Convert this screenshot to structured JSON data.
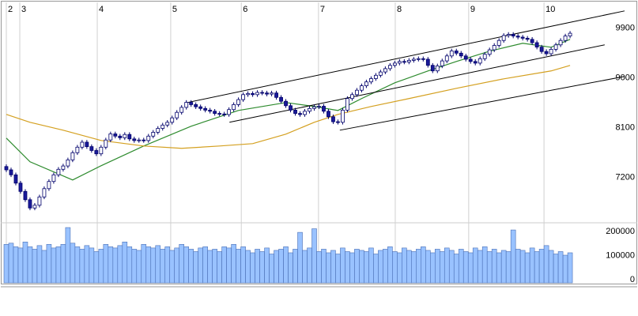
{
  "chart_data": {
    "type": "candlestick",
    "xlim": [
      -0.5,
      128
    ],
    "xticks": [
      {
        "value": 0,
        "label": "2"
      },
      {
        "value": 2.84,
        "label": "3"
      },
      {
        "value": 19.2,
        "label": "4"
      },
      {
        "value": 34.7,
        "label": "5"
      },
      {
        "value": 49.6,
        "label": "6"
      },
      {
        "value": 65.9,
        "label": "7"
      },
      {
        "value": 82.1,
        "label": "8"
      },
      {
        "value": 97.6,
        "label": "9"
      },
      {
        "value": 113.5,
        "label": "10"
      }
    ],
    "ylim": [
      6440,
      10340
    ],
    "yticks": [
      9900,
      9000,
      8100,
      7200
    ],
    "grid": true,
    "up_color": "#ffffff",
    "down_color": "#1a1a99",
    "open": [
      7400,
      7340,
      7250,
      7100,
      6950,
      6800,
      6650,
      6700,
      6850,
      7000,
      7130,
      7250,
      7350,
      7410,
      7520,
      7650,
      7750,
      7840,
      7760,
      7690,
      7630,
      7750,
      7880,
      7990,
      7950,
      7920,
      7980,
      7900,
      7870,
      7880,
      7870,
      7950,
      8020,
      8090,
      8150,
      8200,
      8280,
      8380,
      8470,
      8560,
      8520,
      8480,
      8450,
      8420,
      8400,
      8360,
      8350,
      8340,
      8430,
      8520,
      8610,
      8700,
      8720,
      8700,
      8740,
      8730,
      8710,
      8730,
      8650,
      8580,
      8500,
      8420,
      8360,
      8340,
      8400,
      8450,
      8480,
      8490,
      8400,
      8300,
      8210,
      8200,
      8420,
      8630,
      8700,
      8780,
      8860,
      8930,
      8990,
      9050,
      9110,
      9170,
      9230,
      9270,
      9300,
      9290,
      9320,
      9340,
      9350,
      9340,
      9230,
      9130,
      9220,
      9310,
      9400,
      9490,
      9450,
      9400,
      9340,
      9300,
      9270,
      9350,
      9430,
      9510,
      9590,
      9680,
      9770,
      9790,
      9760,
      9740,
      9720,
      9700,
      9640,
      9560,
      9480,
      9440,
      9520,
      9600,
      9680,
      9760
    ],
    "high": [
      7440,
      7380,
      7290,
      7140,
      6990,
      6840,
      6740,
      6890,
      7040,
      7170,
      7290,
      7390,
      7450,
      7560,
      7690,
      7790,
      7880,
      7880,
      7800,
      7730,
      7790,
      7920,
      8030,
      8030,
      7990,
      8020,
      8020,
      7940,
      7920,
      7920,
      7990,
      8060,
      8130,
      8190,
      8240,
      8320,
      8420,
      8510,
      8600,
      8600,
      8560,
      8520,
      8490,
      8460,
      8440,
      8400,
      8390,
      8470,
      8560,
      8650,
      8740,
      8760,
      8760,
      8780,
      8780,
      8770,
      8770,
      8770,
      8690,
      8620,
      8540,
      8460,
      8400,
      8440,
      8490,
      8520,
      8530,
      8530,
      8440,
      8340,
      8250,
      8460,
      8670,
      8740,
      8820,
      8900,
      8970,
      9030,
      9090,
      9150,
      9210,
      9270,
      9310,
      9340,
      9340,
      9360,
      9380,
      9390,
      9390,
      9380,
      9270,
      9260,
      9350,
      9440,
      9530,
      9530,
      9490,
      9440,
      9380,
      9340,
      9390,
      9470,
      9550,
      9630,
      9720,
      9810,
      9830,
      9830,
      9800,
      9780,
      9760,
      9740,
      9680,
      9600,
      9520,
      9560,
      9640,
      9720,
      9800,
      9850
    ],
    "low": [
      7300,
      7210,
      7060,
      6910,
      6760,
      6610,
      6610,
      6660,
      6810,
      6960,
      7090,
      7210,
      7310,
      7370,
      7480,
      7610,
      7710,
      7720,
      7650,
      7590,
      7590,
      7710,
      7840,
      7910,
      7880,
      7880,
      7860,
      7830,
      7830,
      7830,
      7830,
      7910,
      7980,
      8050,
      8110,
      8160,
      8240,
      8340,
      8430,
      8480,
      8440,
      8410,
      8380,
      8360,
      8320,
      8310,
      8300,
      8300,
      8390,
      8480,
      8570,
      8660,
      8660,
      8660,
      8690,
      8670,
      8670,
      8610,
      8540,
      8460,
      8380,
      8320,
      8300,
      8300,
      8360,
      8410,
      8440,
      8360,
      8260,
      8170,
      8160,
      8160,
      8380,
      8590,
      8660,
      8740,
      8820,
      8890,
      8950,
      9010,
      9070,
      9130,
      9190,
      9230,
      9250,
      9250,
      9280,
      9300,
      9300,
      9190,
      9090,
      9090,
      9180,
      9270,
      9360,
      9410,
      9360,
      9300,
      9260,
      9230,
      9230,
      9310,
      9390,
      9470,
      9550,
      9640,
      9730,
      9720,
      9700,
      9680,
      9660,
      9600,
      9520,
      9440,
      9400,
      9400,
      9480,
      9560,
      9640,
      9720
    ],
    "close": [
      7340,
      7250,
      7100,
      6950,
      6800,
      6650,
      6700,
      6850,
      7000,
      7130,
      7250,
      7350,
      7410,
      7520,
      7650,
      7750,
      7840,
      7760,
      7690,
      7630,
      7750,
      7880,
      7990,
      7950,
      7920,
      7980,
      7900,
      7870,
      7880,
      7870,
      7950,
      8020,
      8090,
      8150,
      8200,
      8280,
      8380,
      8470,
      8560,
      8520,
      8480,
      8450,
      8420,
      8400,
      8360,
      8350,
      8340,
      8430,
      8520,
      8610,
      8700,
      8720,
      8700,
      8740,
      8730,
      8710,
      8730,
      8650,
      8580,
      8500,
      8420,
      8360,
      8340,
      8400,
      8450,
      8480,
      8490,
      8400,
      8300,
      8210,
      8200,
      8420,
      8630,
      8700,
      8780,
      8860,
      8930,
      8990,
      9050,
      9110,
      9170,
      9230,
      9270,
      9300,
      9290,
      9320,
      9340,
      9350,
      9340,
      9230,
      9130,
      9220,
      9310,
      9400,
      9490,
      9450,
      9400,
      9340,
      9300,
      9270,
      9350,
      9430,
      9510,
      9590,
      9680,
      9770,
      9790,
      9760,
      9740,
      9720,
      9700,
      9640,
      9560,
      9480,
      9440,
      9520,
      9600,
      9680,
      9760,
      9810
    ],
    "moving_averages": [
      {
        "color": "#2e8b2e",
        "x": [
          0,
          5,
          14,
          20,
          29,
          39,
          49,
          59,
          65,
          70,
          75,
          82,
          89,
          95,
          102,
          109,
          115,
          119
        ],
        "values": [
          7914,
          7486,
          7157,
          7414,
          7771,
          8129,
          8414,
          8557,
          8486,
          8414,
          8629,
          8914,
          9129,
          9300,
          9486,
          9629,
          9557,
          9700
        ]
      },
      {
        "color": "#d4a020",
        "x": [
          0,
          5,
          12,
          20,
          29,
          37,
          45,
          52,
          59,
          65,
          70,
          77,
          85,
          95,
          105,
          115,
          119
        ],
        "values": [
          8343,
          8200,
          8057,
          7871,
          7771,
          7729,
          7771,
          7814,
          7986,
          8200,
          8343,
          8486,
          8629,
          8814,
          8986,
          9129,
          9229
        ]
      }
    ],
    "trendlines": [
      {
        "x": [
          38.2,
          130.5
        ],
        "values": [
          8557,
          10214
        ]
      },
      {
        "x": [
          47.1,
          126.3
        ],
        "values": [
          8200,
          9600
        ]
      },
      {
        "x": [
          70.4,
          130.5
        ],
        "values": [
          8057,
          9029
        ]
      }
    ],
    "volume": {
      "color": "#99c2ff",
      "ylim": [
        0,
        240000
      ],
      "yticks": [
        200000,
        100000,
        0
      ],
      "values": [
        160000,
        165000,
        150000,
        145000,
        170000,
        150000,
        140000,
        155000,
        135000,
        160000,
        145000,
        150000,
        160000,
        230000,
        165000,
        150000,
        140000,
        155000,
        145000,
        130000,
        140000,
        160000,
        150000,
        145000,
        155000,
        170000,
        150000,
        140000,
        135000,
        160000,
        150000,
        145000,
        155000,
        140000,
        150000,
        135000,
        145000,
        160000,
        150000,
        140000,
        130000,
        145000,
        150000,
        135000,
        140000,
        130000,
        150000,
        145000,
        160000,
        140000,
        150000,
        135000,
        125000,
        140000,
        130000,
        145000,
        120000,
        135000,
        140000,
        150000,
        125000,
        140000,
        210000,
        135000,
        145000,
        225000,
        130000,
        140000,
        125000,
        135000,
        120000,
        145000,
        130000,
        125000,
        140000,
        135000,
        130000,
        145000,
        120000,
        135000,
        140000,
        150000,
        130000,
        125000,
        145000,
        135000,
        130000,
        140000,
        150000,
        135000,
        125000,
        140000,
        130000,
        145000,
        135000,
        120000,
        140000,
        130000,
        125000,
        145000,
        135000,
        150000,
        130000,
        140000,
        125000,
        135000,
        130000,
        220000,
        140000,
        135000,
        125000,
        145000,
        130000,
        140000,
        155000,
        135000,
        120000,
        130000,
        115000,
        125000
      ]
    }
  }
}
